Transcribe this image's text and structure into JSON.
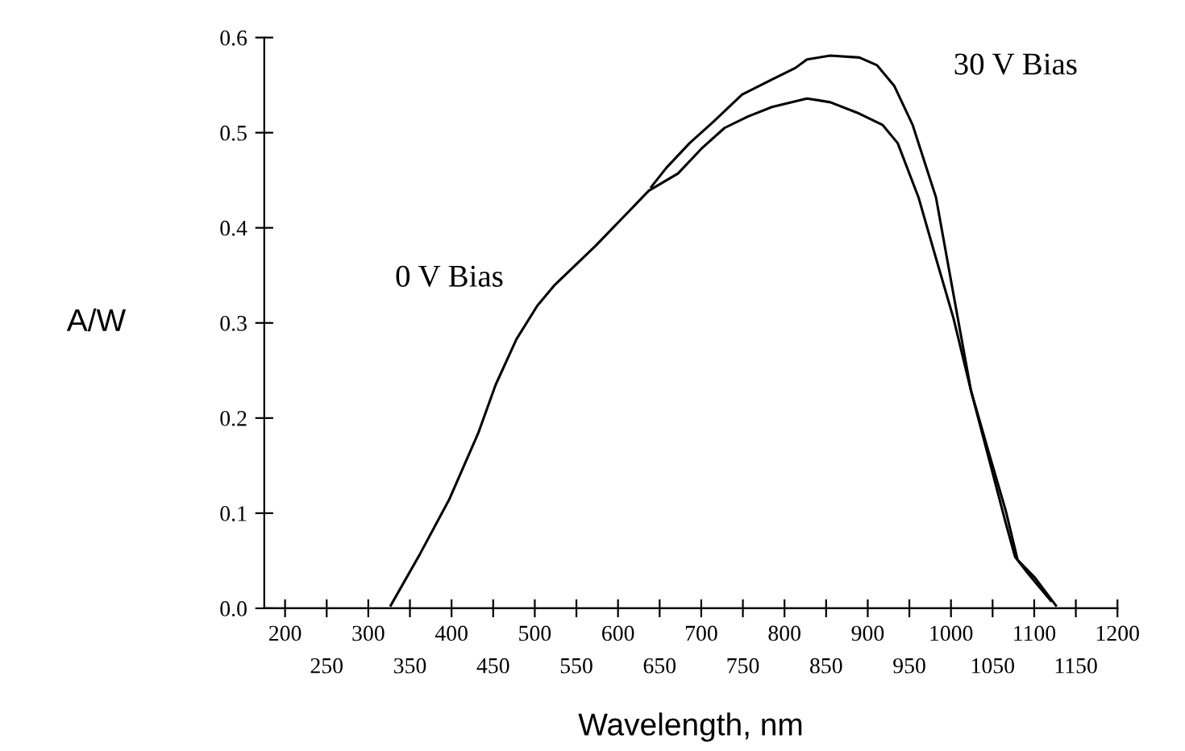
{
  "chart_data": {
    "type": "line",
    "xlabel": "Wavelength, nm",
    "ylabel": "A/W",
    "xlim": [
      175,
      1200
    ],
    "ylim": [
      0,
      0.6
    ],
    "xticks": [
      200,
      300,
      400,
      500,
      600,
      700,
      800,
      900,
      1000,
      1100,
      1200
    ],
    "x2lim": [
      175,
      1200
    ],
    "x2ticks": [
      250,
      350,
      450,
      550,
      650,
      750,
      850,
      950,
      1050,
      1150
    ],
    "yticks": [
      {
        "value": 0,
        "label": "0.0"
      },
      0.1,
      0.2,
      0.3,
      0.4,
      0.5,
      0.6
    ],
    "grid": false,
    "legend": false,
    "marker": "none",
    "line_style": "solid",
    "series": [
      {
        "name": "0 V Bias",
        "color": "#000000",
        "x": [
          327,
          362,
          397,
          432,
          453,
          478,
          503,
          524,
          573,
          637,
          672,
          700,
          728,
          756,
          785,
          827,
          855,
          890,
          918,
          936,
          961,
          982,
          1003,
          1024,
          1045,
          1066,
          1080,
          1101,
          1126
        ],
        "values": [
          0.003,
          0.057,
          0.114,
          0.184,
          0.235,
          0.283,
          0.318,
          0.34,
          0.381,
          0.439,
          0.457,
          0.483,
          0.505,
          0.517,
          0.527,
          0.536,
          0.532,
          0.52,
          0.508,
          0.489,
          0.432,
          0.368,
          0.305,
          0.229,
          0.165,
          0.102,
          0.051,
          0.032,
          0.003
        ]
      },
      {
        "name": "30 V Bias",
        "color": "#000000",
        "x": [
          640,
          658,
          686,
          714,
          749,
          785,
          813,
          827,
          855,
          890,
          911,
          932,
          954,
          982,
          1003,
          1024,
          1045,
          1066,
          1077,
          1094,
          1120
        ],
        "values": [
          0.443,
          0.463,
          0.489,
          0.511,
          0.54,
          0.556,
          0.568,
          0.577,
          0.581,
          0.579,
          0.571,
          0.549,
          0.508,
          0.432,
          0.33,
          0.229,
          0.159,
          0.089,
          0.054,
          0.035,
          0.008
        ]
      }
    ]
  }
}
